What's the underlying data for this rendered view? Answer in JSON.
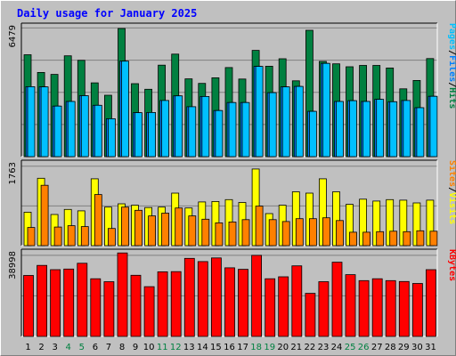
{
  "chart_data": {
    "type": "bar",
    "title": "Daily usage for January 2025",
    "categories": [
      "1",
      "2",
      "3",
      "4",
      "5",
      "6",
      "7",
      "8",
      "9",
      "10",
      "11",
      "12",
      "13",
      "14",
      "15",
      "16",
      "17",
      "18",
      "19",
      "20",
      "21",
      "22",
      "23",
      "24",
      "25",
      "26",
      "27",
      "28",
      "29",
      "30",
      "31"
    ],
    "weekend_days": [
      "4",
      "5",
      "11",
      "12",
      "18",
      "19",
      "25",
      "26"
    ],
    "panels": [
      {
        "name": "hits-files-pages",
        "max_label": "6479",
        "ylim": [
          0,
          6479
        ],
        "right_labels": [
          "Pages",
          "/",
          "Files",
          "/",
          "Hits"
        ],
        "right_label_colors": [
          "#00c0ff",
          "#000000",
          "#0080ff",
          "#000000",
          "#008040"
        ],
        "series": [
          {
            "name": "Hits",
            "color": "#008040",
            "values": [
              5080,
              4200,
              4100,
              5030,
              4800,
              3680,
              3060,
              6390,
              3640,
              3360,
              4560,
              5110,
              3880,
              3650,
              3930,
              4440,
              3870,
              5300,
              4510,
              4880,
              3780,
              6300,
              4750,
              4630,
              4480,
              4550,
              4550,
              4420,
              3380,
              3800,
              4890
            ]
          },
          {
            "name": "Files",
            "color": "#0080ff",
            "values": [
              3490,
              3480,
              2520,
              2750,
              3040,
              2560,
              1890,
              4760,
              2190,
              2200,
              2800,
              3030,
              2490,
              3000,
              2300,
              2700,
              2700,
              4500,
              3190,
              3480,
              3500,
              2260,
              4650,
              2750,
              2790,
              2750,
              2860,
              2740,
              2800,
              2440,
              3010
            ]
          },
          {
            "name": "Pages",
            "color": "#00c0ff",
            "values": [
              3490,
              3480,
              2520,
              2750,
              3040,
              2560,
              1890,
              4760,
              2190,
              2200,
              2800,
              3030,
              2490,
              3000,
              2300,
              2700,
              2700,
              4500,
              3190,
              3480,
              3500,
              2260,
              4650,
              2750,
              2790,
              2750,
              2860,
              2740,
              2800,
              2440,
              3010
            ]
          }
        ]
      },
      {
        "name": "visits-sites",
        "max_label": "1763",
        "ylim": [
          0,
          1763
        ],
        "right_labels": [
          "Sites",
          "/",
          "Visits"
        ],
        "right_label_colors": [
          "#ff8000",
          "#000000",
          "#ffff00"
        ],
        "series": [
          {
            "name": "Visits",
            "color": "#ffff00",
            "values": [
              720,
              1450,
              670,
              780,
              750,
              1440,
              830,
              900,
              870,
              820,
              830,
              1130,
              810,
              940,
              950,
              990,
              930,
              1650,
              690,
              870,
              1160,
              1130,
              1440,
              1160,
              890,
              1000,
              960,
              990,
              980,
              920,
              980
            ]
          },
          {
            "name": "Sites",
            "color": "#ff8000",
            "values": [
              390,
              1300,
              400,
              430,
              410,
              1100,
              370,
              830,
              760,
              640,
              700,
              810,
              640,
              570,
              490,
              510,
              560,
              850,
              560,
              520,
              580,
              580,
              600,
              540,
              290,
              290,
              300,
              310,
              300,
              320,
              310
            ]
          }
        ]
      },
      {
        "name": "kbytes",
        "max_label": "38998",
        "ylim": [
          0,
          38998
        ],
        "right_labels": [
          "KBytes"
        ],
        "right_label_colors": [
          "#ff0000"
        ],
        "series": [
          {
            "name": "KBytes",
            "color": "#ff0000",
            "values": [
              28400,
              33100,
              31100,
              31400,
              34100,
              26900,
              25500,
              38900,
              28500,
              23200,
              30100,
              30200,
              36400,
              34900,
              36600,
              32000,
              31300,
              37800,
              26900,
              27800,
              32900,
              20100,
              25500,
              34600,
              28800,
              26000,
              26900,
              26000,
              25600,
              24700,
              31100
            ]
          }
        ]
      }
    ]
  }
}
